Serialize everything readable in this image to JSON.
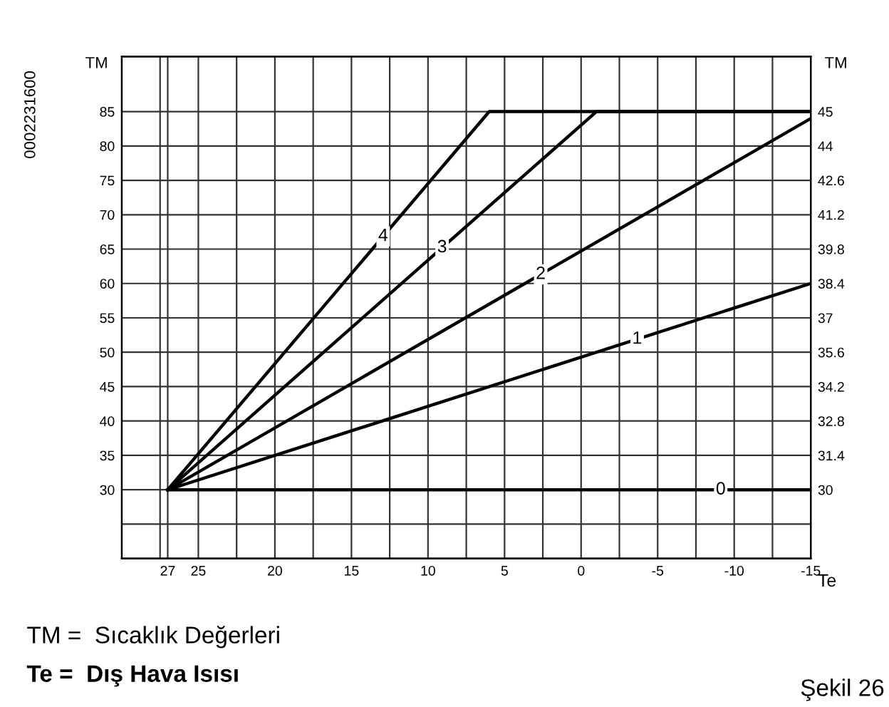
{
  "chart_data": {
    "type": "line",
    "ylabel": "TM",
    "y2label": "TM",
    "xlabel": "Te",
    "xlim": [
      30,
      -15
    ],
    "ylim": [
      20,
      93
    ],
    "xticks": [
      {
        "value": 27.5,
        "label": null
      },
      27,
      25,
      {
        "value": 22.5,
        "label": null
      },
      20,
      {
        "value": 17.5,
        "label": null
      },
      15,
      {
        "value": 12.5,
        "label": null
      },
      10,
      {
        "value": 7.5,
        "label": null
      },
      5,
      {
        "value": 2.5,
        "label": null
      },
      0,
      {
        "value": -2.5,
        "label": null
      },
      -5,
      {
        "value": -7.5,
        "label": null
      },
      -10,
      {
        "value": -12.5,
        "label": null
      },
      -15
    ],
    "yticks": [
      {
        "value": 25,
        "label": null
      },
      30,
      35,
      40,
      45,
      50,
      55,
      60,
      65,
      70,
      75,
      80,
      85
    ],
    "y2lim": [
      27.2,
      47.64
    ],
    "y2ticks": [
      30,
      31.4,
      32.8,
      34.2,
      35.6,
      37,
      38.4,
      39.8,
      41.2,
      42.6,
      44,
      {
        "value": 45.4,
        "label": "45"
      }
    ],
    "grid": true,
    "legend": false,
    "marker": "none",
    "line_style": "solid",
    "series": [
      {
        "name": "0",
        "color": "#000000",
        "x": [
          27,
          -15
        ],
        "values": [
          30,
          30
        ]
      },
      {
        "name": "1",
        "color": "#000000",
        "x": [
          27,
          -15
        ],
        "values": [
          30,
          60
        ]
      },
      {
        "name": "2",
        "color": "#000000",
        "x": [
          27,
          -15
        ],
        "values": [
          30,
          84
        ]
      },
      {
        "name": "3",
        "color": "#000000",
        "x": [
          27,
          -1,
          -15
        ],
        "values": [
          30,
          85,
          85
        ]
      },
      {
        "name": "4",
        "color": "#000000",
        "x": [
          27,
          6,
          -15
        ],
        "values": [
          30,
          85,
          85
        ]
      }
    ],
    "annotations": [
      "0002231600",
      "TM =  Sıcaklık Değerleri",
      "Te =  Dış Hava Isısı",
      "Şekil 26"
    ]
  }
}
